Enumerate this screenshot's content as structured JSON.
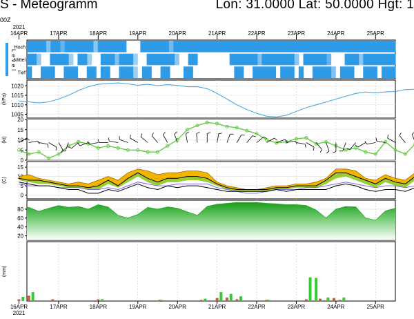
{
  "header": {
    "title": "S - Meteogramm",
    "coords": "Lon: 31.0000 Lat: 50.0000 Hgt: 1",
    "init_note": "00Z"
  },
  "colors": {
    "cloud": "#2E9BE8",
    "pressure": "#4FA6D8",
    "wind": "#000000",
    "wind_speed": "#66CC44",
    "temp_max": "#F2B400",
    "temp_mid": "#9ACD32",
    "temp_line": "#000000",
    "dewpoint": "#7B68EE",
    "humidity": "#22AA22",
    "precip_conv": "#33CC33",
    "precip_large": "#B8663C"
  },
  "chart_data": [
    {
      "type": "heatmap",
      "name": "cloud-cover",
      "x_top_year": "2021",
      "x_tick_labels": [
        "16APR",
        "17APR",
        "18APR",
        "19APR",
        "20APR",
        "21APR",
        "22APR",
        "23APR",
        "24APR",
        "25APR"
      ],
      "ylabel": "Level",
      "rows": [
        "Hoch",
        "Mittel",
        "Tief"
      ],
      "values": {
        "Hoch": [
          1,
          1,
          1,
          1,
          0.4,
          1,
          1,
          0.6,
          1,
          1,
          1,
          1,
          1,
          1,
          0.3,
          1,
          1,
          1,
          1,
          1,
          1,
          0,
          0,
          0,
          1,
          1,
          1,
          1,
          1,
          1,
          0.5,
          1,
          1,
          1,
          1,
          1,
          1,
          1,
          1,
          1,
          1,
          1,
          1,
          1,
          1,
          1,
          1,
          1,
          1,
          1,
          1,
          1,
          1,
          1,
          1,
          1,
          1,
          1,
          1,
          1,
          1,
          1,
          1,
          1,
          1,
          1,
          1,
          1,
          1,
          1,
          1,
          1,
          1,
          1,
          1,
          1,
          1,
          1
        ],
        "Mittel": [
          1,
          1,
          0.3,
          0,
          0,
          1,
          1,
          1,
          1,
          0.2,
          0,
          1,
          1,
          0.2,
          0,
          0,
          1,
          1,
          1,
          0.4,
          1,
          1,
          1,
          0.2,
          0,
          0,
          1,
          1,
          1,
          1,
          1,
          1,
          0.3,
          0,
          0,
          1,
          1,
          0,
          0,
          0,
          0,
          0,
          0,
          0,
          1,
          1,
          1,
          1,
          1,
          1,
          0.4,
          1,
          1,
          1,
          1,
          1,
          1,
          1,
          0.3,
          0,
          1,
          1,
          1,
          1,
          1,
          0.6,
          0,
          0,
          0,
          1,
          1,
          1,
          0.3,
          1,
          1,
          1,
          1,
          1,
          1,
          1
        ],
        "Tief": [
          1,
          0,
          0,
          1,
          1,
          1,
          0,
          0,
          1,
          1,
          1,
          0,
          0,
          1,
          1,
          0,
          1,
          1,
          0,
          0,
          1,
          1,
          1,
          0.2,
          0,
          1,
          1,
          0,
          0,
          1,
          1,
          0,
          0,
          0,
          1,
          1,
          0,
          0,
          0,
          0,
          0,
          0,
          0,
          0,
          0,
          1,
          1,
          0,
          0,
          1,
          1,
          1,
          1,
          1,
          0,
          1,
          1,
          1,
          0,
          1,
          0,
          0,
          1,
          1,
          1,
          1,
          0.4,
          0,
          1,
          1,
          1,
          0,
          0,
          1,
          1,
          1,
          0,
          1,
          1,
          1
        ]
      }
    },
    {
      "type": "line",
      "name": "pressure",
      "ylabel": "(hPa)",
      "yticks": [
        1005,
        1010,
        1015,
        1020
      ],
      "ylim": [
        1003,
        1023
      ],
      "x_days": [
        0,
        0.25,
        0.5,
        0.75,
        1,
        1.25,
        1.5,
        1.75,
        2,
        2.25,
        2.5,
        2.75,
        3,
        3.25,
        3.5,
        3.75,
        4,
        4.25,
        4.5,
        4.75,
        5,
        5.25,
        5.5,
        5.75,
        6,
        6.25,
        6.5,
        6.75,
        7,
        7.25,
        7.5,
        7.75,
        8,
        8.25,
        8.5,
        8.75,
        9,
        9.25,
        9.5,
        9.75,
        10,
        10.25,
        10.5
      ],
      "values": [
        1012,
        1011.5,
        1011,
        1011.5,
        1013,
        1015,
        1017.5,
        1019.5,
        1020.8,
        1021.2,
        1021.5,
        1021,
        1020.3,
        1020.8,
        1020.1,
        1020.6,
        1020.2,
        1019.5,
        1019.5,
        1018.5,
        1016,
        1013,
        1010,
        1007.5,
        1005.5,
        1004,
        1003.6,
        1004.5,
        1006.5,
        1008.5,
        1010,
        1011.5,
        1013,
        1014.5,
        1016,
        1016.7,
        1016.3,
        1016.8,
        1017,
        1018,
        1018.2,
        1018.8,
        1020.3
      ]
    },
    {
      "type": "line",
      "name": "wind",
      "ylabel": "(kt)",
      "yticks": [
        0,
        5,
        10,
        15,
        20
      ],
      "ylim": [
        0,
        20
      ],
      "x_days": [
        0,
        0.25,
        0.5,
        0.75,
        1,
        1.25,
        1.5,
        1.75,
        2,
        2.25,
        2.5,
        2.75,
        3,
        3.25,
        3.5,
        3.75,
        4,
        4.25,
        4.5,
        4.75,
        5,
        5.25,
        5.5,
        5.75,
        6,
        6.25,
        6.5,
        6.75,
        7,
        7.25,
        7.5,
        7.75,
        8,
        8.25,
        8.5,
        8.75,
        9,
        9.25,
        9.5,
        9.75,
        10,
        10.25,
        10.5
      ],
      "values": [
        5,
        3,
        4,
        1,
        3,
        7,
        9,
        8,
        6,
        7,
        6,
        5,
        5,
        4,
        4,
        7,
        10,
        15,
        17,
        18.5,
        18,
        16.5,
        16,
        14.5,
        13,
        10,
        8.5,
        9,
        10.5,
        11,
        8,
        9,
        7,
        5,
        6,
        4,
        3,
        9,
        5,
        3,
        8,
        10,
        7
      ],
      "barb_directions_deg": [
        60,
        80,
        100,
        120,
        150,
        200,
        230,
        250,
        260,
        270,
        280,
        290,
        300,
        310,
        320,
        330,
        340,
        350,
        355,
        0,
        10,
        20,
        30,
        40,
        50,
        60,
        70,
        80,
        100,
        120,
        140,
        160,
        180,
        200,
        220,
        240,
        260,
        280,
        300,
        320,
        340,
        350,
        0
      ]
    },
    {
      "type": "area",
      "name": "temperature",
      "ylabel": "(C)",
      "yticks": [
        0,
        5,
        10,
        15
      ],
      "ylim": [
        -2,
        18
      ],
      "x_days": [
        0,
        0.25,
        0.5,
        0.75,
        1,
        1.25,
        1.5,
        1.75,
        2,
        2.25,
        2.5,
        2.75,
        3,
        3.25,
        3.5,
        3.75,
        4,
        4.25,
        4.5,
        4.75,
        5,
        5.25,
        5.5,
        5.75,
        6,
        6.25,
        6.5,
        6.75,
        7,
        7.25,
        7.5,
        7.75,
        8,
        8.25,
        8.5,
        8.75,
        9,
        9.25,
        9.5,
        9.75,
        10,
        10.25,
        10.5
      ],
      "series": [
        {
          "name": "tmax",
          "values": [
            10,
            11,
            9,
            8,
            7,
            6,
            7,
            6,
            8,
            10,
            8,
            12,
            14,
            13,
            11,
            12,
            12,
            13,
            13,
            12,
            7,
            5,
            4,
            3,
            3,
            4,
            5,
            5,
            6,
            6,
            7,
            9,
            14,
            14,
            13,
            9,
            8,
            11,
            9,
            8,
            12,
            11,
            7
          ]
        },
        {
          "name": "t2m",
          "values": [
            9,
            8,
            8,
            7,
            6,
            5,
            5,
            4,
            5,
            8,
            5,
            9,
            12,
            9,
            7,
            9,
            9,
            10,
            10,
            9,
            6,
            4,
            3,
            3,
            3,
            3,
            4,
            4,
            5,
            5,
            5,
            8,
            12,
            12,
            10,
            8,
            6,
            9,
            7,
            6,
            10,
            9,
            6
          ]
        },
        {
          "name": "tmin",
          "values": [
            8,
            7,
            6,
            6,
            5,
            4,
            4,
            3,
            3,
            6,
            4,
            7,
            10,
            7,
            5,
            7,
            7,
            8,
            8,
            7,
            5,
            3,
            2,
            2,
            2,
            2,
            3,
            3,
            4,
            4,
            4,
            6,
            9,
            10,
            8,
            6,
            4,
            7,
            5,
            4,
            8,
            7,
            5
          ]
        },
        {
          "name": "dewpoint",
          "values": [
            6,
            5,
            5,
            5,
            4,
            4,
            4,
            3,
            3,
            4,
            3,
            5,
            7,
            6,
            5,
            5,
            6,
            6,
            6,
            6,
            4,
            3,
            2,
            1,
            1,
            2,
            3,
            3,
            3,
            4,
            4,
            5,
            6,
            7,
            6,
            5,
            4,
            5,
            5,
            4,
            5,
            5,
            4
          ]
        },
        {
          "name": "tlow",
          "values": [
            7,
            6,
            5,
            5,
            4,
            3,
            3,
            1,
            1,
            3,
            2,
            4,
            6,
            4,
            3,
            5,
            4,
            5,
            5,
            4,
            3,
            2,
            2,
            2,
            2,
            2,
            3,
            2,
            3,
            3,
            3,
            3,
            5,
            6,
            5,
            3,
            2,
            3,
            3,
            2,
            4,
            3,
            2
          ]
        }
      ]
    },
    {
      "type": "area",
      "name": "relative-humidity",
      "ylabel": "",
      "yticks": [
        20,
        40,
        60,
        80
      ],
      "ylim": [
        10,
        100
      ],
      "x_days": [
        0,
        0.25,
        0.5,
        0.75,
        1,
        1.25,
        1.5,
        1.75,
        2,
        2.25,
        2.5,
        2.75,
        3,
        3.25,
        3.5,
        3.75,
        4,
        4.25,
        4.5,
        4.75,
        5,
        5.25,
        5.5,
        5.75,
        6,
        6.25,
        6.5,
        6.75,
        7,
        7.25,
        7.5,
        7.75,
        8,
        8.25,
        8.5,
        8.75,
        9,
        9.25,
        9.5,
        9.75,
        10,
        10.25,
        10.5
      ],
      "values": [
        78,
        84,
        75,
        82,
        88,
        84,
        86,
        80,
        90,
        85,
        66,
        60,
        68,
        84,
        80,
        85,
        82,
        74,
        66,
        86,
        91,
        93,
        95,
        95,
        95,
        93,
        92,
        90,
        90,
        88,
        78,
        60,
        80,
        86,
        85,
        60,
        55,
        76,
        82,
        70,
        58,
        72,
        84
      ]
    },
    {
      "type": "bar",
      "name": "precipitation",
      "ylabel": "(mm)",
      "x_tick_labels": [
        "16APR",
        "17APR",
        "18APR",
        "19APR",
        "20APR",
        "21APR",
        "22APR",
        "23APR",
        "24APR",
        "25APR"
      ],
      "x_bottom_year": "2021",
      "ylim": [
        0,
        10
      ],
      "series": [
        {
          "name": "convective",
          "x_days": [
            0.1,
            0.35,
            2.1,
            3.6,
            4.7,
            5.1,
            5.35,
            5.6,
            6.3,
            7.35,
            7.5,
            7.8,
            8.2
          ],
          "values": [
            0.7,
            1.5,
            0.3,
            0.2,
            0.4,
            1.5,
            1.2,
            0.8,
            0.2,
            4.0,
            3.9,
            0.6,
            0.6
          ]
        },
        {
          "name": "large-scale",
          "x_days": [
            0.0,
            0.25,
            0.85,
            2.0,
            3.55,
            4.6,
            5.0,
            5.25,
            5.5,
            6.25,
            7.25,
            7.6,
            7.95,
            8.1
          ],
          "values": [
            0.3,
            0.9,
            0.3,
            0.3,
            0.2,
            0.2,
            0.5,
            0.6,
            0.3,
            0.2,
            0.3,
            0.4,
            0.5,
            0.2
          ]
        }
      ]
    }
  ]
}
